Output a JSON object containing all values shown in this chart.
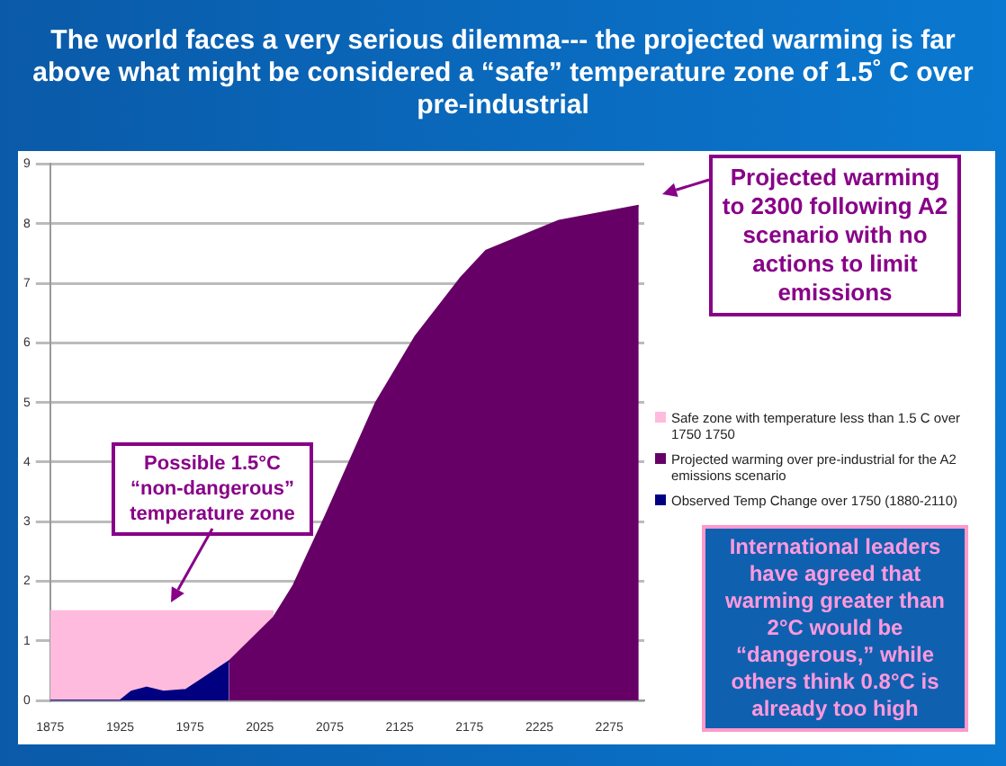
{
  "chart_data": {
    "type": "area",
    "title": "The world faces a very serious dilemma--- the projected warming is far above what might be considered a “safe” temperature zone of 1.5˚ C over pre-industrial",
    "xlim": [
      1875,
      2300
    ],
    "xticks": [
      1875,
      1925,
      1975,
      2025,
      2075,
      2125,
      2175,
      2225,
      2275
    ],
    "ylim": [
      0,
      9
    ],
    "yticks": [
      0,
      1,
      2,
      3,
      4,
      5,
      6,
      7,
      8,
      9
    ],
    "grid": "y",
    "legend": "right",
    "series": [
      {
        "name": "Safe zone with temperature less than 1.5 C over 1750 1750",
        "color": "#ffbbdd",
        "x": [
          1875,
          2035
        ],
        "values": [
          1.5,
          1.5
        ]
      },
      {
        "name": "Projected warming over pre-industrial for the A2 emissions scenario",
        "color": "#660066",
        "x": [
          2003,
          2035,
          2049,
          2072,
          2108,
          2136,
          2169,
          2187,
          2239,
          2296
        ],
        "values": [
          0.66,
          1.4,
          1.93,
          3.1,
          5.0,
          6.1,
          7.1,
          7.55,
          8.05,
          8.3
        ]
      },
      {
        "name": "Observed Temp Change over 1750 (1880-2110)",
        "color": "#000080",
        "x": [
          1875,
          1890,
          1905,
          1915,
          1925,
          1933,
          1944,
          1956,
          1972,
          1983,
          2003
        ],
        "values": [
          0,
          0,
          0,
          0,
          0,
          0.15,
          0.22,
          0.15,
          0.18,
          0.35,
          0.66
        ]
      }
    ],
    "annotations": [
      "Projected warming to 2300 following A2 scenario with no actions to limit emissions",
      "Possible 1.5°C “non-dangerous” temperature zone",
      "International leaders have agreed that warming greater than 2°C would be “dangerous,” while others think 0.8°C is already too high"
    ]
  }
}
